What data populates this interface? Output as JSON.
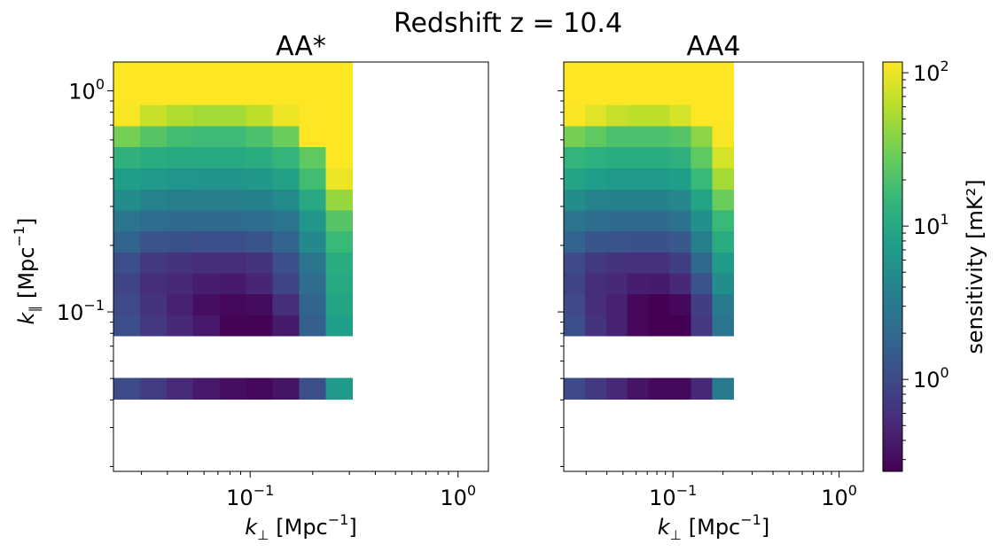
{
  "suptitle": "Redshift z = 10.4",
  "colors": {
    "viridis": [
      "#440154",
      "#482878",
      "#3e4989",
      "#31688e",
      "#26828e",
      "#1f9e89",
      "#35b779",
      "#6ece58",
      "#b5de2b",
      "#fde725"
    ]
  },
  "chart_data": [
    {
      "type": "heatmap",
      "title": "AA*",
      "xscale": "log",
      "yscale": "log",
      "xlim": [
        0.022,
        1.4
      ],
      "ylim": [
        0.019,
        1.35
      ],
      "xlabel": "k⊥ [Mpc⁻¹]",
      "ylabel": "k∥ [Mpc⁻¹]",
      "x_edges": [
        0.022,
        0.0295,
        0.0396,
        0.0531,
        0.0713,
        0.0957,
        0.128,
        0.172,
        0.231,
        0.31
      ],
      "y_edges": [
        0.0404,
        0.0503,
        0.0626,
        0.0779,
        0.097,
        0.121,
        0.15,
        0.187,
        0.233,
        0.29,
        0.36,
        0.449,
        0.559,
        0.695,
        0.866,
        1.078,
        1.35
      ],
      "z_log10": [
        [
          0.02,
          -0.12,
          -0.28,
          -0.42,
          -0.5,
          -0.55,
          -0.45,
          0.05,
          0.85
        ],
        [
          null,
          null,
          null,
          null,
          null,
          null,
          null,
          null,
          null
        ],
        [
          null,
          null,
          null,
          null,
          null,
          null,
          null,
          null,
          null
        ],
        [
          0.05,
          -0.15,
          -0.3,
          -0.42,
          -0.58,
          -0.58,
          -0.4,
          0.2,
          0.9
        ],
        [
          0.0,
          -0.2,
          -0.35,
          -0.5,
          -0.55,
          -0.52,
          -0.25,
          0.25,
          0.95
        ],
        [
          -0.05,
          -0.25,
          -0.3,
          -0.38,
          -0.42,
          -0.32,
          -0.05,
          0.35,
          1.0
        ],
        [
          0.05,
          -0.15,
          -0.2,
          -0.25,
          -0.25,
          -0.2,
          0.05,
          0.45,
          1.05
        ],
        [
          0.25,
          0.1,
          0.08,
          0.05,
          0.05,
          0.1,
          0.25,
          0.65,
          1.2
        ],
        [
          0.45,
          0.35,
          0.32,
          0.32,
          0.32,
          0.35,
          0.45,
          0.8,
          1.35
        ],
        [
          0.7,
          0.6,
          0.55,
          0.55,
          0.55,
          0.58,
          0.68,
          1.0,
          1.65
        ],
        [
          0.9,
          0.85,
          0.8,
          0.78,
          0.78,
          0.82,
          0.92,
          1.25,
          2.0
        ],
        [
          1.1,
          1.05,
          1.0,
          1.0,
          1.0,
          1.05,
          1.15,
          1.4,
          2.2
        ],
        [
          1.5,
          1.35,
          1.25,
          1.22,
          1.22,
          1.3,
          1.45,
          2.1,
          2.2
        ],
        [
          2.05,
          1.85,
          1.75,
          1.7,
          1.7,
          1.8,
          2.0,
          2.2,
          2.2
        ],
        [
          2.2,
          2.2,
          2.2,
          2.2,
          2.2,
          2.2,
          2.2,
          2.2,
          2.2
        ],
        [
          2.2,
          2.2,
          2.2,
          2.2,
          2.2,
          2.2,
          2.2,
          2.2,
          2.2
        ]
      ]
    },
    {
      "type": "heatmap",
      "title": "AA4",
      "xscale": "log",
      "yscale": "log",
      "xlim": [
        0.022,
        1.4
      ],
      "ylim": [
        0.019,
        1.35
      ],
      "xlabel": "k⊥ [Mpc⁻¹]",
      "ylabel": "",
      "x_edges": [
        0.022,
        0.0295,
        0.0396,
        0.0531,
        0.0713,
        0.0957,
        0.128,
        0.172,
        0.231,
        0.31
      ],
      "y_edges": [
        0.0404,
        0.0503,
        0.0626,
        0.0779,
        0.097,
        0.121,
        0.15,
        0.187,
        0.233,
        0.29,
        0.36,
        0.449,
        0.559,
        0.695,
        0.866,
        1.078,
        1.35
      ],
      "z_log10": [
        [
          0.0,
          -0.15,
          -0.3,
          -0.45,
          -0.55,
          -0.55,
          -0.3,
          0.5,
          null
        ],
        [
          null,
          null,
          null,
          null,
          null,
          null,
          null,
          null,
          null
        ],
        [
          null,
          null,
          null,
          null,
          null,
          null,
          null,
          null,
          null
        ],
        [
          0.05,
          -0.2,
          -0.35,
          -0.55,
          -0.62,
          -0.6,
          -0.15,
          0.45,
          null
        ],
        [
          0.0,
          -0.25,
          -0.35,
          -0.55,
          -0.6,
          -0.55,
          -0.1,
          0.5,
          null
        ],
        [
          -0.05,
          -0.25,
          -0.3,
          -0.38,
          -0.4,
          -0.3,
          0.1,
          0.7,
          null
        ],
        [
          0.0,
          -0.15,
          -0.2,
          -0.22,
          -0.22,
          -0.1,
          0.3,
          0.85,
          null
        ],
        [
          0.25,
          0.12,
          0.1,
          0.08,
          0.08,
          0.15,
          0.55,
          1.05,
          null
        ],
        [
          0.45,
          0.35,
          0.32,
          0.32,
          0.32,
          0.4,
          0.75,
          1.2,
          null
        ],
        [
          0.7,
          0.6,
          0.58,
          0.58,
          0.58,
          0.65,
          0.95,
          1.45,
          null
        ],
        [
          0.95,
          0.88,
          0.85,
          0.85,
          0.85,
          0.9,
          1.2,
          1.7,
          null
        ],
        [
          1.15,
          1.08,
          1.05,
          1.05,
          1.05,
          1.1,
          1.4,
          1.9,
          null
        ],
        [
          1.5,
          1.4,
          1.3,
          1.3,
          1.3,
          1.35,
          1.6,
          2.05,
          null
        ],
        [
          2.05,
          1.95,
          1.85,
          1.8,
          1.8,
          1.9,
          2.1,
          2.2,
          null
        ],
        [
          2.2,
          2.2,
          2.2,
          2.2,
          2.2,
          2.2,
          2.2,
          2.2,
          null
        ],
        [
          2.2,
          2.2,
          2.2,
          2.2,
          2.2,
          2.2,
          2.2,
          2.2,
          null
        ]
      ]
    }
  ],
  "colorbar": {
    "label": "sensitivity [mK²]",
    "scale": "log",
    "range_log10": [
      -0.6,
      2.07
    ],
    "ticks": [
      {
        "base": "10",
        "exp": "0",
        "log10": 0
      },
      {
        "base": "10",
        "exp": "1",
        "log10": 1
      },
      {
        "base": "10",
        "exp": "2",
        "log10": 2
      }
    ]
  },
  "axis_ticks": {
    "x": [
      {
        "base": "10",
        "exp": "−1",
        "value": 0.1
      },
      {
        "base": "10",
        "exp": "0",
        "value": 1
      }
    ],
    "y": [
      {
        "base": "10",
        "exp": "−1",
        "value": 0.1
      },
      {
        "base": "10",
        "exp": "0",
        "value": 1
      }
    ]
  },
  "labels": {
    "k": "k",
    "perp_sub": "⊥",
    "par_sub": "∥",
    "unit_open": "[Mpc",
    "unit_exp": "−1",
    "unit_close": "]"
  }
}
